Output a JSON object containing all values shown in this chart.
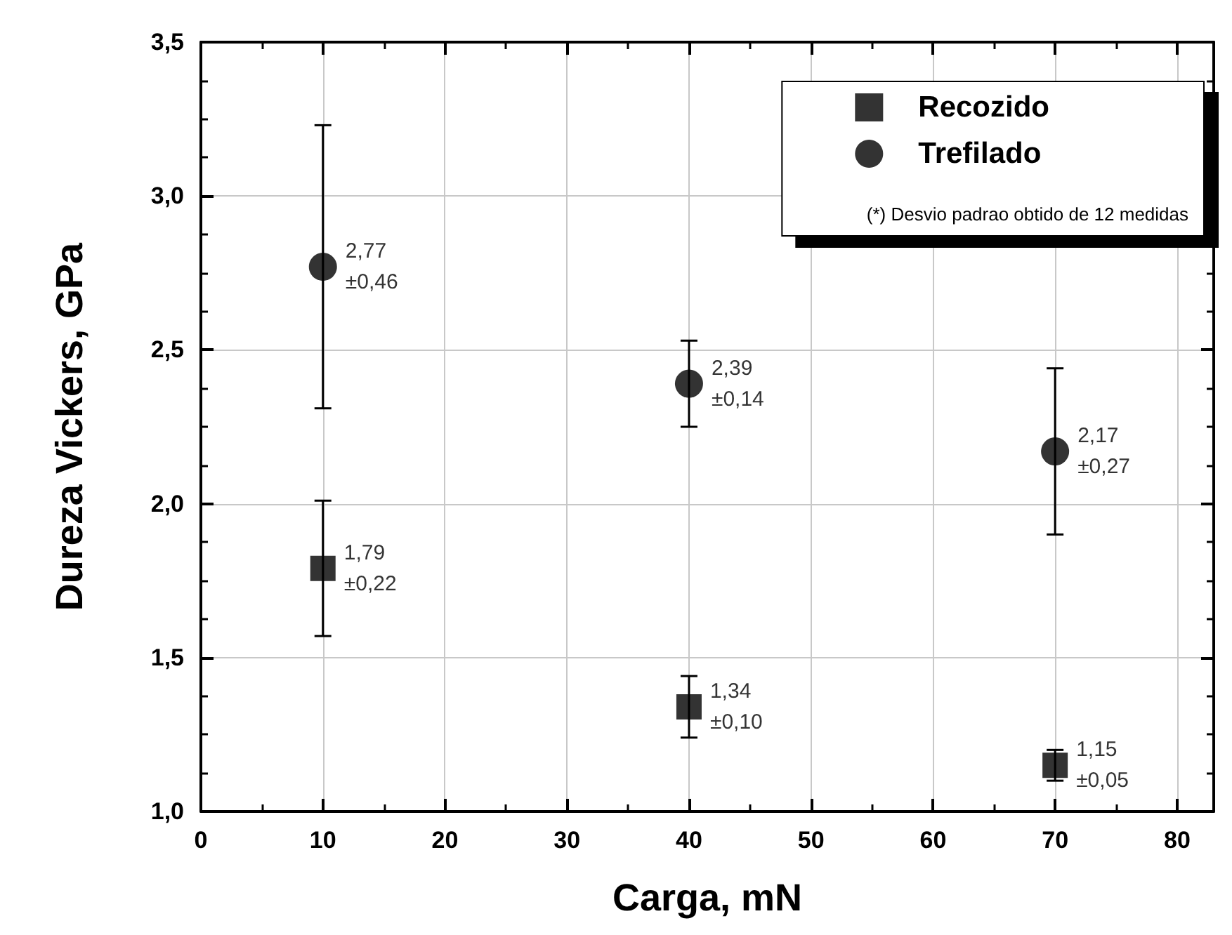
{
  "chart_data": {
    "type": "scatter",
    "xlabel": "Carga, mN",
    "ylabel": "Dureza Vickers, GPa",
    "x": [
      10,
      40,
      70
    ],
    "series": [
      {
        "name": "Recozido",
        "color": "#000000",
        "marker": "square",
        "values": [
          1.79,
          1.34,
          1.15
        ],
        "errors": [
          0.22,
          0.1,
          0.05
        ],
        "value_labels": [
          "1,79\n±0,22",
          "1,34\n±0,10",
          "1,15\n±0,05"
        ]
      },
      {
        "name": "Trefilado",
        "color": "#000000",
        "marker": "circle",
        "values": [
          2.77,
          2.39,
          2.17
        ],
        "errors": [
          0.46,
          0.14,
          0.27
        ],
        "value_labels": [
          "2,77\n±0,46",
          "2,39\n±0,14",
          "2,17\n±0,27"
        ]
      }
    ],
    "xlim": [
      0,
      83
    ],
    "xticks": [
      0,
      10,
      20,
      30,
      40,
      50,
      60,
      70,
      80
    ],
    "ylim": [
      1.0,
      3.5
    ],
    "yticks": [
      {
        "value": 1.0,
        "label": "1,0"
      },
      {
        "value": 1.5,
        "label": "1,5"
      },
      {
        "value": 2.0,
        "label": "2,0"
      },
      {
        "value": 2.5,
        "label": "2,5"
      },
      {
        "value": 3.0,
        "label": "3,0"
      },
      {
        "value": 3.5,
        "label": "3,5"
      }
    ],
    "grid": true,
    "legend": "top right",
    "annotations": [
      "(*) Desvio padrao obtido de 12 medidas"
    ]
  }
}
